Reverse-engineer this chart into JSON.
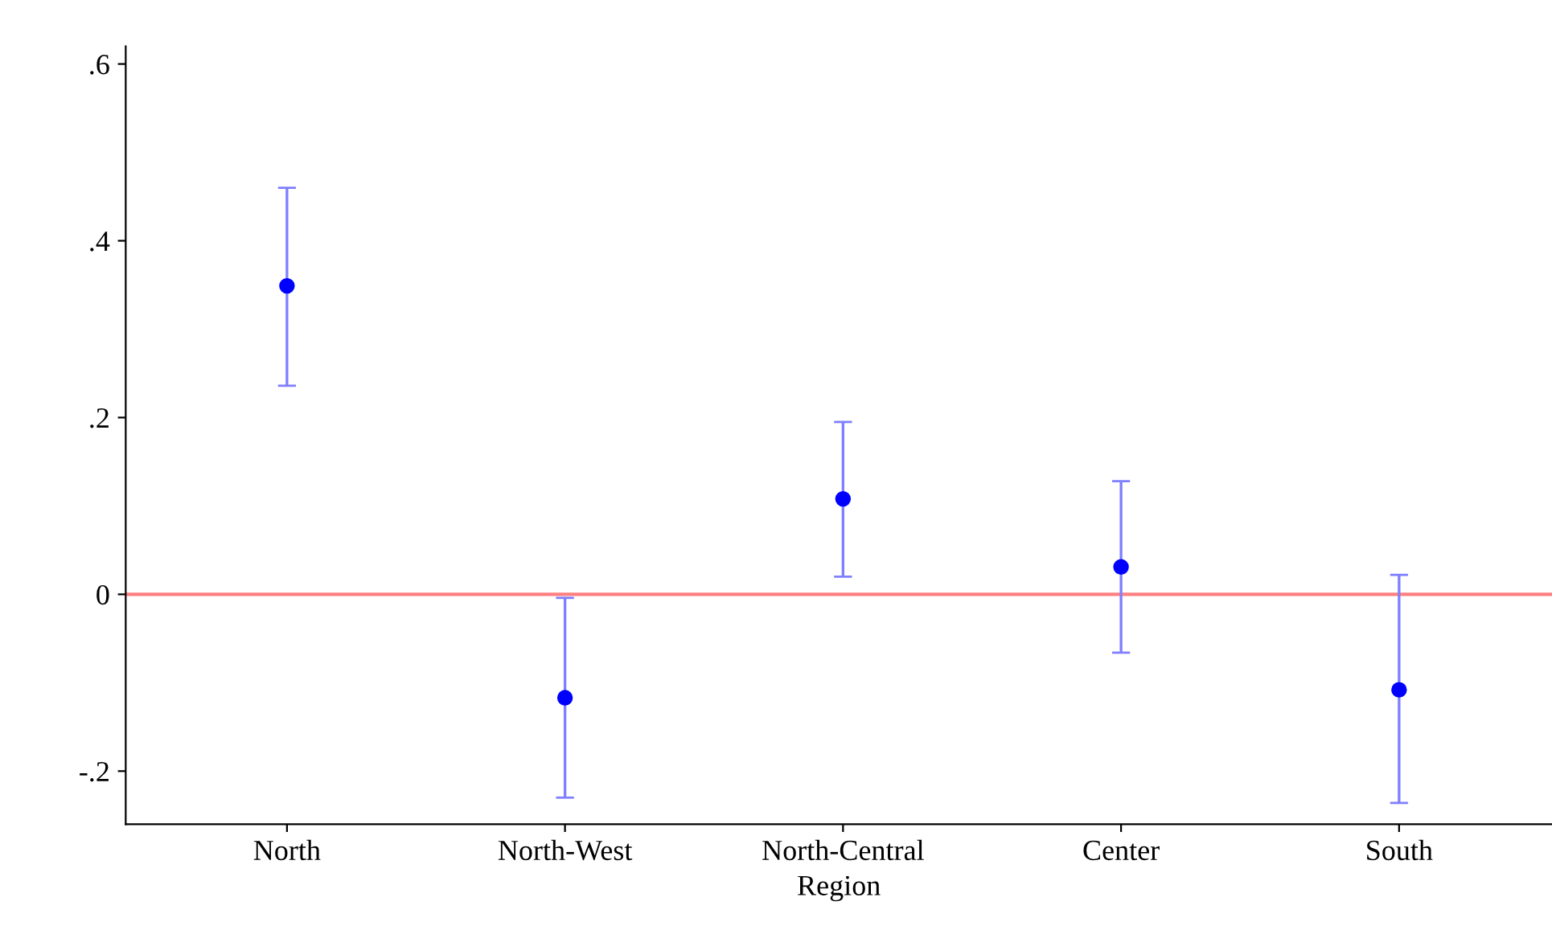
{
  "chart_data": {
    "type": "scatter",
    "xlabel": "Region",
    "categories": [
      "North",
      "North-West",
      "North-Central",
      "Center",
      "South"
    ],
    "series": [
      {
        "color": "#0000ff",
        "values": [
          0.349,
          -0.117,
          0.108,
          0.031,
          -0.108
        ],
        "errors": [
          [
            0.236,
            0.46
          ],
          [
            -0.23,
            -0.004
          ],
          [
            0.02,
            0.195
          ],
          [
            -0.066,
            0.128
          ],
          [
            -0.236,
            0.022
          ]
        ]
      }
    ],
    "ylim": [
      -0.26,
      0.62
    ],
    "yticks": [
      {
        "value": -0.2,
        "label": "-.2"
      },
      0,
      {
        "value": 0.2,
        "label": ".2"
      },
      {
        "value": 0.4,
        "label": ".4"
      },
      {
        "value": 0.6,
        "label": ".6"
      }
    ],
    "ref_lines": [
      {
        "axis": "y",
        "value": 0,
        "color": "#ff8080"
      }
    ],
    "marker": "circle",
    "grid": false,
    "legend": false
  }
}
